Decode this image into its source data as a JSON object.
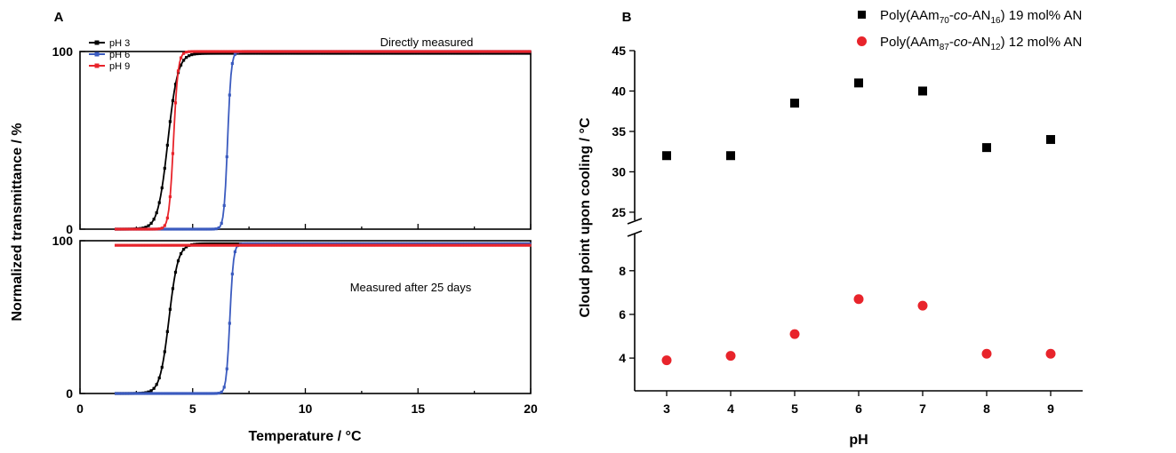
{
  "chart_data": [
    {
      "type": "line",
      "panel_label": "A",
      "xlabel": "Temperature / °C",
      "ylabel": "Normalized transmittance / %",
      "xlim": [
        0,
        20
      ],
      "x_ticks": [
        "0",
        "5",
        "10",
        "15",
        "20"
      ],
      "legend": {
        "placement": "top-left",
        "entries": [
          "pH 3",
          "pH 6",
          "pH 9"
        ]
      },
      "subplots": [
        {
          "annotation": "Directly measured",
          "ylim": [
            0,
            100
          ],
          "y_ticks": [
            "0",
            "100"
          ],
          "series": [
            {
              "name": "pH 3",
              "color": "#000000",
              "start": 1.6,
              "end": 20,
              "midpoint": 3.9,
              "width": 0.22,
              "low": 0,
              "high": 99
            },
            {
              "name": "pH 6",
              "color": "#3b5bbf",
              "start": 1.6,
              "end": 20,
              "midpoint": 6.55,
              "width": 0.08,
              "low": 0,
              "high": 100
            },
            {
              "name": "pH 9",
              "color": "#e8242b",
              "start": 1.6,
              "end": 20,
              "midpoint": 4.15,
              "width": 0.1,
              "low": 0,
              "high": 100
            }
          ]
        },
        {
          "annotation": "Measured after 25 days",
          "ylim": [
            0,
            100
          ],
          "y_ticks": [
            "0",
            "100"
          ],
          "series": [
            {
              "name": "pH 3",
              "color": "#000000",
              "start": 1.6,
              "end": 20,
              "midpoint": 3.95,
              "width": 0.2,
              "low": 0,
              "high": 98
            },
            {
              "name": "pH 6",
              "color": "#3b5bbf",
              "start": 1.6,
              "end": 20,
              "midpoint": 6.65,
              "width": 0.08,
              "low": 0,
              "high": 98
            },
            {
              "name": "pH 9",
              "color": "#e8242b",
              "start": 1.6,
              "end": 20,
              "constant": 97,
              "low": 97,
              "high": 97
            }
          ]
        }
      ]
    },
    {
      "type": "scatter",
      "panel_label": "B",
      "xlabel": "pH",
      "ylabel": "Cloud point upon cooling / °C",
      "xlim": [
        2.5,
        9.5
      ],
      "x_ticks": [
        "3",
        "4",
        "5",
        "6",
        "7",
        "8",
        "9"
      ],
      "y_axis_break": true,
      "ylim_upper": [
        24,
        45
      ],
      "y_ticks_upper": [
        "25",
        "30",
        "35",
        "40",
        "45"
      ],
      "ylim_lower": [
        2.5,
        9.7
      ],
      "y_ticks_lower": [
        "4",
        "6",
        "8"
      ],
      "legend": {
        "placement": "top-right",
        "entries": [
          {
            "prefix": "Poly(AAm",
            "sub1": "70",
            "mid": "-",
            "italic": "co",
            "mid2": "-AN",
            "sub2": "16",
            "suffix": ") 19 mol% AN"
          },
          {
            "prefix": "Poly(AAm",
            "sub1": "87",
            "mid": "-",
            "italic": "co",
            "mid2": "-AN",
            "sub2": "12",
            "suffix": ") 12 mol% AN"
          }
        ]
      },
      "series": [
        {
          "name": "Poly(AAm70-co-AN16) 19 mol% AN",
          "marker": "square",
          "color": "#000000",
          "x": [
            3,
            4,
            5,
            6,
            7,
            8,
            9
          ],
          "y": [
            32,
            32,
            38.5,
            41,
            40,
            33,
            34
          ]
        },
        {
          "name": "Poly(AAm87-co-AN12) 12 mol% AN",
          "marker": "circle",
          "color": "#e8242b",
          "x": [
            3,
            4,
            5,
            6,
            7,
            8,
            9
          ],
          "y": [
            3.9,
            4.1,
            5.1,
            6.7,
            6.4,
            4.2,
            4.2
          ]
        }
      ]
    }
  ]
}
